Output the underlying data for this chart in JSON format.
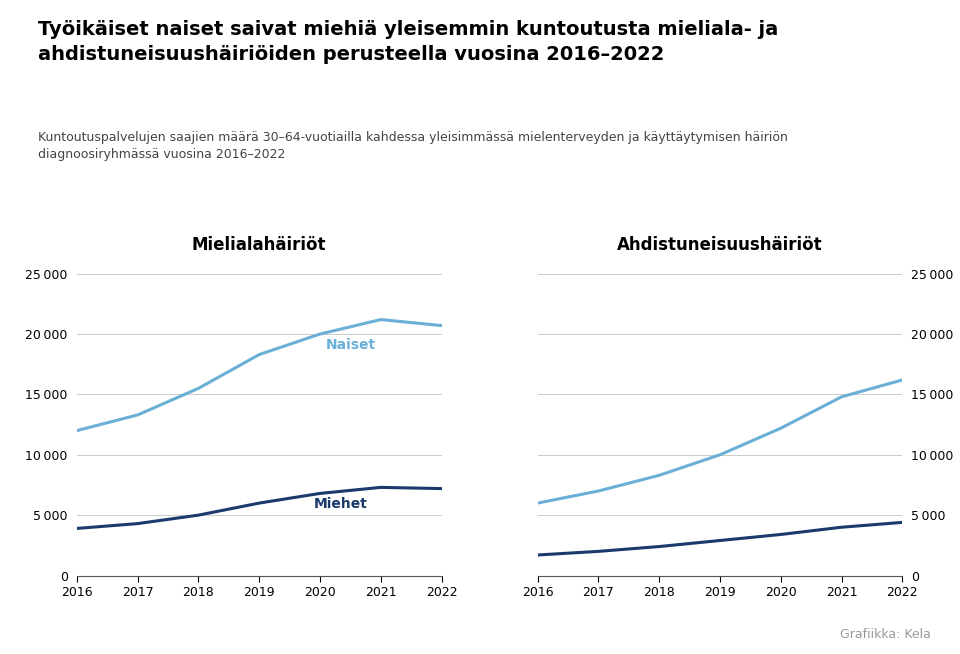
{
  "title": "Työikäiset naiset saivat miehiä yleisemmin kuntoutusta mieliala- ja\nahdistuneisuushäiriöiden perusteella vuosina 2016–2022",
  "subtitle": "Kuntoutuspalvelujen saajien määrä 30–64-vuotiailla kahdessa yleisimmässä mielenterveyden ja käyttäytymisen häiriön\ndiagnoosiryhmässä vuosina 2016–2022",
  "credit": "Grafiikka: Kela",
  "years": [
    2016,
    2017,
    2018,
    2019,
    2020,
    2021,
    2022
  ],
  "left_title": "Mielialahäiriöt",
  "right_title": "Ahdistuneisuushäiriöt",
  "left_naiset": [
    12000,
    13300,
    15500,
    18300,
    20000,
    21200,
    20700
  ],
  "left_miehet": [
    3900,
    4300,
    5000,
    6000,
    6800,
    7300,
    7200
  ],
  "right_naiset": [
    6000,
    7000,
    8300,
    10000,
    12200,
    14800,
    16200
  ],
  "right_miehet": [
    1700,
    2000,
    2400,
    2900,
    3400,
    4000,
    4400
  ],
  "color_naiset": "#6aafd6",
  "color_miehet": "#1a3a6b",
  "ylim": [
    0,
    26000
  ],
  "yticks": [
    0,
    5000,
    10000,
    15000,
    20000,
    25000
  ],
  "background_color": "#ffffff",
  "label_naiset": "Naiset",
  "label_miehet": "Miehet",
  "title_fontsize": 14,
  "subtitle_fontsize": 9,
  "axis_title_fontsize": 12,
  "tick_fontsize": 9,
  "label_fontsize": 10,
  "credit_fontsize": 9
}
